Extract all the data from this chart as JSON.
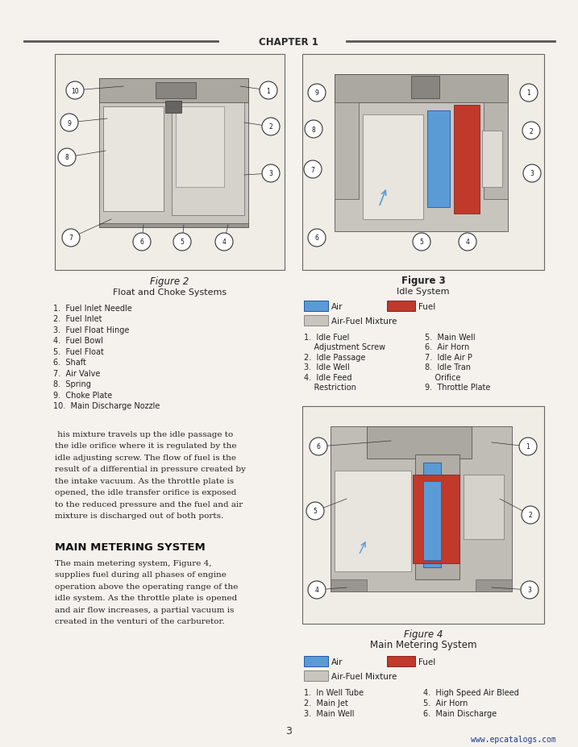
{
  "page_bg": "#f5f2ed",
  "chapter_text": "CHAPTER 1",
  "page_number": "3",
  "watermark": "www.epcatalogs.com",
  "watermark_color": "#1a3a8a",
  "fig2_title": "Figure 2",
  "fig2_subtitle": "Float and Choke Systems",
  "fig2_labels": [
    "1.  Fuel Inlet Needle",
    "2.  Fuel Inlet",
    "3.  Fuel Float Hinge",
    "4.  Fuel Bowl",
    "5.  Fuel Float",
    "6.  Shaft",
    "7.  Air Valve",
    "8.  Spring",
    "9.  Choke Plate",
    "10.  Main Discharge Nozzle"
  ],
  "fig3_title": "Figure 3",
  "fig3_subtitle": "Idle System",
  "fig3_labels_col1": [
    "1.  Idle Fuel",
    "    Adjustment Screw",
    "2.  Idle Passage",
    "3.  Idle Well",
    "4.  Idle Feed",
    "    Restriction"
  ],
  "fig3_labels_col2": [
    "5.  Main Well",
    "6.  Air Horn",
    "7.  Idle Air P",
    "8.  Idle Tran",
    "    Orifice",
    "9.  Throttle Plate"
  ],
  "fig4_title": "Figure 4",
  "fig4_subtitle": "Main Metering System",
  "fig4_labels_col1": [
    "1.  In Well Tube",
    "2.  Main Jet",
    "3.  Main Well"
  ],
  "fig4_labels_col2": [
    "4.  High Speed Air Bleed",
    "5.  Air Horn",
    "6.  Main Discharge"
  ],
  "legend_air_color": "#5b9bd5",
  "legend_fuel_color": "#c0392b",
  "legend_mixture_color": "#c8c4be",
  "body_text": " his mixture travels up the idle passage to\nthe idle orifice where it is regulated by the\nidle adjusting screw. The flow of fuel is the\nresult of a differential in pressure created by\nthe intake vacuum. As the throttle plate is\nopened, the idle transfer orifice is exposed\nto the reduced pressure and the fuel and air\nmixture is discharged out of both ports.",
  "main_heading": "MAIN METERING SYSTEM",
  "main_body_text": "The main metering system, Figure 4,\nsupplies fuel during all phases of engine\noperation above the operating range of the\nidle system. As the throttle plate is opened\nand air flow increases, a partial vacuum is\ncreated in the venturi of the carburetor."
}
